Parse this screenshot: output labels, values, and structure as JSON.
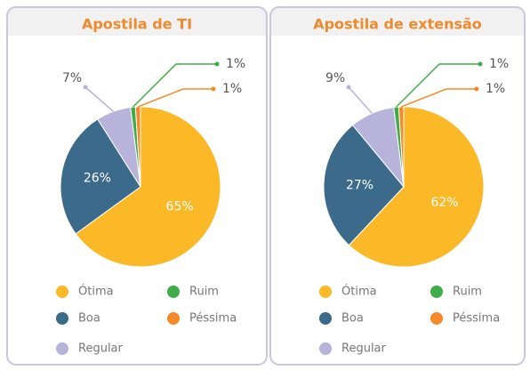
{
  "chart_data": [
    {
      "type": "pie",
      "title": "Apostila de TI",
      "categories": [
        "Ótima",
        "Boa",
        "Regular",
        "Ruim",
        "Péssima"
      ],
      "values": [
        65,
        26,
        7,
        1,
        1
      ],
      "value_labels": [
        "65%",
        "26%",
        "7%",
        "1%",
        "1%"
      ],
      "colors": [
        "#fbb827",
        "#3b6a8b",
        "#b8b3da",
        "#41ad4a",
        "#f58a2b"
      ]
    },
    {
      "type": "pie",
      "title": "Apostila de extensão",
      "categories": [
        "Ótima",
        "Boa",
        "Regular",
        "Ruim",
        "Péssima"
      ],
      "values": [
        62,
        27,
        9,
        1,
        1
      ],
      "value_labels": [
        "62%",
        "27%",
        "9%",
        "1%",
        "1%"
      ],
      "colors": [
        "#fbb827",
        "#3b6a8b",
        "#b8b3da",
        "#41ad4a",
        "#f58a2b"
      ]
    }
  ]
}
